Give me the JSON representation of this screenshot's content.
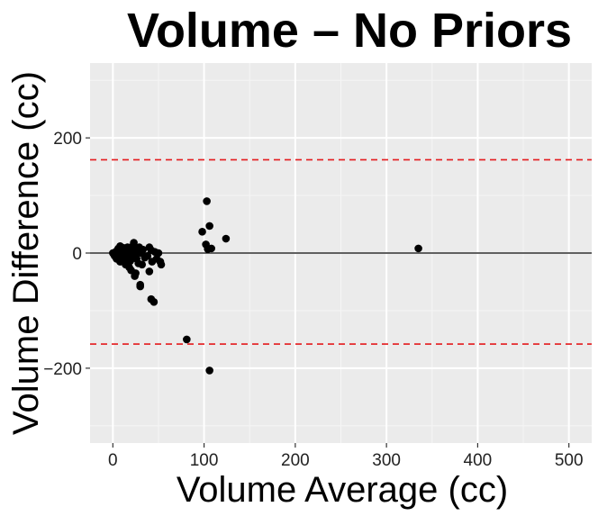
{
  "chart_data": {
    "type": "scatter",
    "title": "Volume – No Priors",
    "xlabel": "Volume Average (cc)",
    "ylabel": "Volume Difference (cc)",
    "xlim": [
      -25,
      525
    ],
    "ylim": [
      -330,
      330
    ],
    "x_ticks": [
      0,
      100,
      200,
      300,
      400,
      500
    ],
    "x_tick_labels": [
      "0",
      "100",
      "200",
      "300",
      "400",
      "500"
    ],
    "y_ticks": [
      -200,
      0,
      200
    ],
    "y_tick_labels": [
      "−200",
      "0",
      "200"
    ],
    "grid": true,
    "reference_lines": [
      {
        "name": "mean-difference",
        "y": 0,
        "style": "solid",
        "color": "#000000"
      },
      {
        "name": "upper-limit-of-agreement",
        "y": 162,
        "style": "dashed",
        "color": "#e41a1c"
      },
      {
        "name": "lower-limit-of-agreement",
        "y": -158,
        "style": "dashed",
        "color": "#e41a1c"
      }
    ],
    "series": [
      {
        "name": "points",
        "color": "#000000",
        "points": [
          [
            0,
            0
          ],
          [
            1,
            -2
          ],
          [
            2,
            -5
          ],
          [
            3,
            2
          ],
          [
            4,
            -10
          ],
          [
            5,
            5
          ],
          [
            5,
            -3
          ],
          [
            6,
            8
          ],
          [
            7,
            -6
          ],
          [
            8,
            12
          ],
          [
            8,
            -15
          ],
          [
            9,
            3
          ],
          [
            10,
            -2
          ],
          [
            10,
            6
          ],
          [
            11,
            -8
          ],
          [
            12,
            9
          ],
          [
            12,
            -12
          ],
          [
            13,
            1
          ],
          [
            14,
            -20
          ],
          [
            15,
            4
          ],
          [
            15,
            -6
          ],
          [
            16,
            10
          ],
          [
            17,
            -3
          ],
          [
            18,
            -25
          ],
          [
            18,
            7
          ],
          [
            19,
            -14
          ],
          [
            20,
            2
          ],
          [
            20,
            -30
          ],
          [
            21,
            11
          ],
          [
            22,
            -9
          ],
          [
            22,
            5
          ],
          [
            23,
            18
          ],
          [
            24,
            -5
          ],
          [
            24,
            -40
          ],
          [
            25,
            8
          ],
          [
            25,
            -35
          ],
          [
            26,
            -10
          ],
          [
            27,
            3
          ],
          [
            28,
            -18
          ],
          [
            29,
            10
          ],
          [
            30,
            -55
          ],
          [
            30,
            -58
          ],
          [
            31,
            0
          ],
          [
            32,
            -20
          ],
          [
            33,
            6
          ],
          [
            35,
            -8
          ],
          [
            38,
            -5
          ],
          [
            40,
            -32
          ],
          [
            40,
            10
          ],
          [
            42,
            -80
          ],
          [
            42,
            5
          ],
          [
            43,
            -15
          ],
          [
            45,
            -85
          ],
          [
            46,
            2
          ],
          [
            48,
            -10
          ],
          [
            50,
            0
          ],
          [
            52,
            -15
          ],
          [
            53,
            -20
          ],
          [
            81,
            -150
          ],
          [
            98,
            37
          ],
          [
            102,
            15
          ],
          [
            103,
            90
          ],
          [
            104,
            7
          ],
          [
            106,
            47
          ],
          [
            106,
            -204
          ],
          [
            108,
            8
          ],
          [
            124,
            25
          ],
          [
            335,
            8
          ]
        ]
      }
    ]
  }
}
